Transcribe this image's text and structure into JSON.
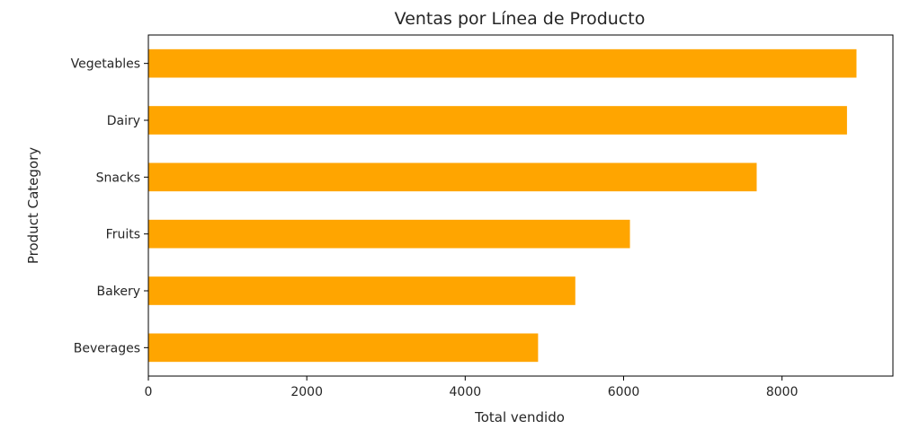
{
  "chart_data": {
    "type": "bar",
    "orientation": "horizontal",
    "title": "Ventas por Línea de Producto",
    "xlabel": "Total vendido",
    "ylabel": "Product Category",
    "categories": [
      "Vegetables",
      "Dairy",
      "Snacks",
      "Fruits",
      "Bakery",
      "Beverages"
    ],
    "values": [
      8940,
      8820,
      7680,
      6080,
      5390,
      4920
    ],
    "xlim": [
      0,
      9400
    ],
    "xticks": [
      0,
      2000,
      4000,
      6000,
      8000
    ],
    "bar_color": "#ffa500",
    "grid": false,
    "legend": "none"
  }
}
